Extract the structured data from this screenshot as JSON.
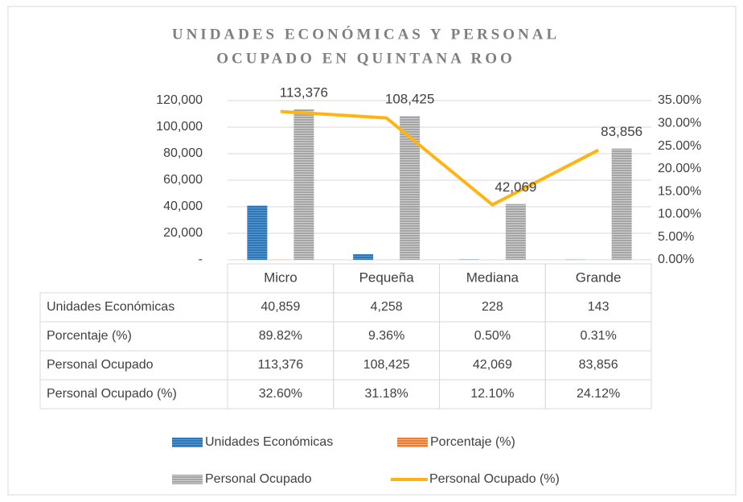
{
  "chart_data": {
    "type": "bar",
    "title": [
      "UNIDADES ECONÓMICAS Y PERSONAL",
      "OCUPADO EN QUINTANA ROO"
    ],
    "categories": [
      "Micro",
      "Pequeña",
      "Mediana",
      "Grande"
    ],
    "series": [
      {
        "name": "Unidades Económicas",
        "type": "bar",
        "axis": "y",
        "color": "#2e75b6",
        "values": [
          40859,
          4258,
          228,
          143
        ],
        "value_labels": [
          "40,859",
          "4,258",
          "228",
          "143"
        ]
      },
      {
        "name": "Porcentaje  (%)",
        "type": "bar",
        "axis": "y",
        "color": "#ed7d31",
        "values": [
          89.82,
          9.36,
          0.5,
          0.31
        ],
        "value_labels": [
          "89.82%",
          "9.36%",
          "0.50%",
          "0.31%"
        ]
      },
      {
        "name": "Personal Ocupado",
        "type": "bar",
        "axis": "y",
        "color": "#a5a5a5",
        "values": [
          113376,
          108425,
          42069,
          83856
        ],
        "value_labels": [
          "113,376",
          "108,425",
          "42,069",
          "83,856"
        ],
        "data_labels": true
      },
      {
        "name": "Personal Ocupado (%)",
        "type": "line",
        "axis": "y2",
        "color": "#ffb414",
        "values": [
          32.6,
          31.18,
          12.1,
          24.12
        ],
        "value_labels": [
          "32.60%",
          "31.18%",
          "12.10%",
          "24.12%"
        ]
      }
    ],
    "ylim": [
      0,
      120000
    ],
    "yticks": [
      {
        "value": 0,
        "label": "-"
      },
      {
        "value": 20000,
        "label": "20,000"
      },
      {
        "value": 40000,
        "label": "40,000"
      },
      {
        "value": 60000,
        "label": "60,000"
      },
      {
        "value": 80000,
        "label": "80,000"
      },
      {
        "value": 100000,
        "label": "100,000"
      },
      {
        "value": 120000,
        "label": "120,000"
      }
    ],
    "y2lim": [
      0,
      35
    ],
    "y2ticks": [
      {
        "value": 0,
        "label": "0.00%"
      },
      {
        "value": 5,
        "label": "5.00%"
      },
      {
        "value": 10,
        "label": "10.00%"
      },
      {
        "value": 15,
        "label": "15.00%"
      },
      {
        "value": 20,
        "label": "20.00%"
      },
      {
        "value": 25,
        "label": "25.00%"
      },
      {
        "value": 30,
        "label": "30.00%"
      },
      {
        "value": 35,
        "label": "35.00%"
      }
    ],
    "grid": true
  }
}
